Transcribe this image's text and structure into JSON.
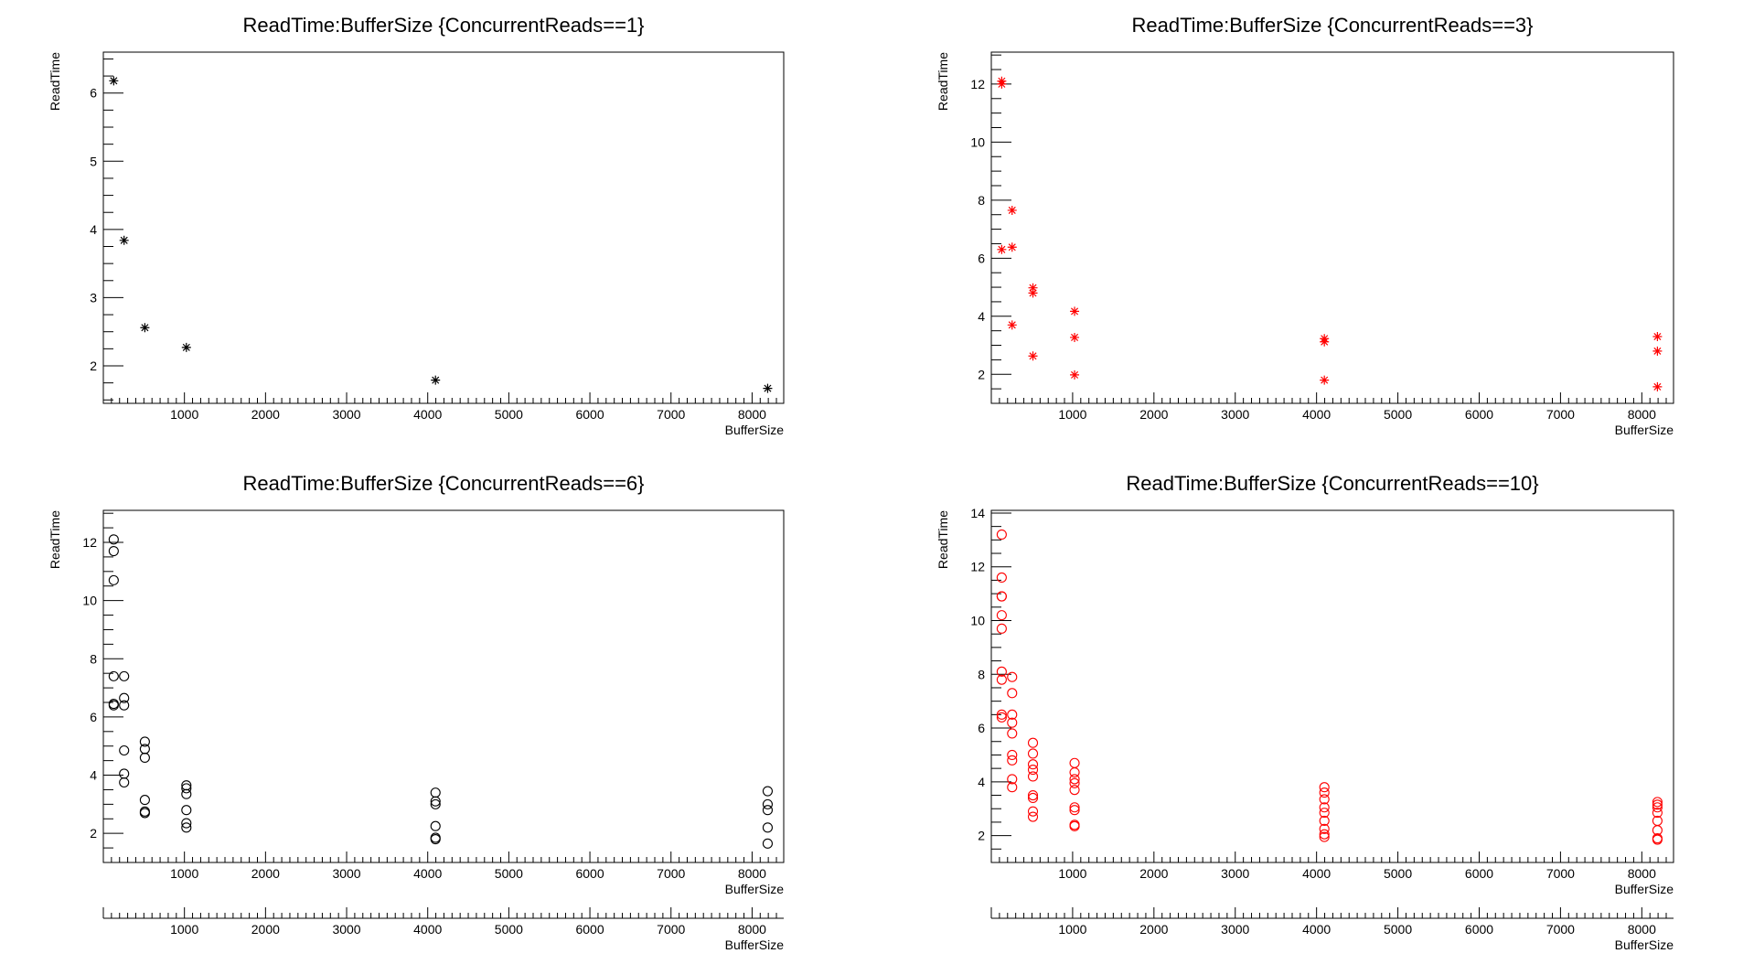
{
  "chart_data": [
    {
      "type": "scatter",
      "title": "ReadTime:BufferSize {ConcurrentReads==1}",
      "xlabel": "BufferSize",
      "ylabel": "ReadTime",
      "xlim": [
        0,
        8390
      ],
      "ylim": [
        1.45,
        6.6
      ],
      "xticks": [
        "1000",
        "2000",
        "3000",
        "4000",
        "5000",
        "6000",
        "7000",
        "8000"
      ],
      "yticks": [
        "2",
        "3",
        "4",
        "5",
        "6"
      ],
      "marker": "star",
      "color": "#000000",
      "points": [
        [
          128,
          6.18
        ],
        [
          256,
          3.84
        ],
        [
          512,
          2.56
        ],
        [
          1024,
          2.27
        ],
        [
          4096,
          1.79
        ],
        [
          8192,
          1.67
        ]
      ]
    },
    {
      "type": "scatter",
      "title": "ReadTime:BufferSize {ConcurrentReads==3}",
      "xlabel": "BufferSize",
      "ylabel": "ReadTime",
      "xlim": [
        0,
        8390
      ],
      "ylim": [
        1.0,
        13.1
      ],
      "xticks": [
        "1000",
        "2000",
        "3000",
        "4000",
        "5000",
        "6000",
        "7000",
        "8000"
      ],
      "yticks": [
        "2",
        "4",
        "6",
        "8",
        "10",
        "12"
      ],
      "marker": "star",
      "color": "#ff0000",
      "points": [
        [
          128,
          12.0
        ],
        [
          128,
          12.1
        ],
        [
          128,
          6.3
        ],
        [
          256,
          7.65
        ],
        [
          256,
          6.38
        ],
        [
          256,
          3.7
        ],
        [
          512,
          4.98
        ],
        [
          512,
          4.8
        ],
        [
          512,
          2.63
        ],
        [
          1024,
          4.17
        ],
        [
          1024,
          3.27
        ],
        [
          1024,
          1.98
        ],
        [
          4096,
          3.23
        ],
        [
          4096,
          3.12
        ],
        [
          4096,
          1.8
        ],
        [
          8192,
          3.3
        ],
        [
          8192,
          2.8
        ],
        [
          8192,
          1.57
        ]
      ]
    },
    {
      "type": "scatter",
      "title": "ReadTime:BufferSize {ConcurrentReads==6}",
      "xlabel": "BufferSize",
      "ylabel": "ReadTime",
      "xlim": [
        0,
        8390
      ],
      "ylim": [
        1.0,
        13.1
      ],
      "xticks": [
        "1000",
        "2000",
        "3000",
        "4000",
        "5000",
        "6000",
        "7000",
        "8000"
      ],
      "yticks": [
        "2",
        "4",
        "6",
        "8",
        "10",
        "12"
      ],
      "marker": "circle",
      "color": "#000000",
      "points": [
        [
          128,
          12.1
        ],
        [
          128,
          11.7
        ],
        [
          128,
          10.7
        ],
        [
          128,
          7.4
        ],
        [
          128,
          6.45
        ],
        [
          128,
          6.4
        ],
        [
          256,
          7.4
        ],
        [
          256,
          6.65
        ],
        [
          256,
          6.4
        ],
        [
          256,
          4.85
        ],
        [
          256,
          4.05
        ],
        [
          256,
          3.75
        ],
        [
          512,
          5.15
        ],
        [
          512,
          4.9
        ],
        [
          512,
          4.6
        ],
        [
          512,
          3.15
        ],
        [
          512,
          2.75
        ],
        [
          512,
          2.7
        ],
        [
          1024,
          3.65
        ],
        [
          1024,
          3.55
        ],
        [
          1024,
          3.35
        ],
        [
          1024,
          2.8
        ],
        [
          1024,
          2.35
        ],
        [
          1024,
          2.2
        ],
        [
          4096,
          3.4
        ],
        [
          4096,
          3.1
        ],
        [
          4096,
          3.0
        ],
        [
          4096,
          2.25
        ],
        [
          4096,
          1.85
        ],
        [
          4096,
          1.8
        ],
        [
          8192,
          3.45
        ],
        [
          8192,
          3.0
        ],
        [
          8192,
          2.8
        ],
        [
          8192,
          2.2
        ],
        [
          8192,
          1.65
        ]
      ]
    },
    {
      "type": "scatter",
      "title": "ReadTime:BufferSize {ConcurrentReads==10}",
      "xlabel": "BufferSize",
      "ylabel": "ReadTime",
      "xlim": [
        0,
        8390
      ],
      "ylim": [
        1.0,
        14.1
      ],
      "xticks": [
        "1000",
        "2000",
        "3000",
        "4000",
        "5000",
        "6000",
        "7000",
        "8000"
      ],
      "yticks": [
        "2",
        "4",
        "6",
        "8",
        "10",
        "12",
        "14"
      ],
      "marker": "circle",
      "color": "#ff0000",
      "points": [
        [
          128,
          13.2
        ],
        [
          128,
          11.6
        ],
        [
          128,
          10.9
        ],
        [
          128,
          10.9
        ],
        [
          128,
          10.2
        ],
        [
          128,
          9.7
        ],
        [
          128,
          8.1
        ],
        [
          128,
          7.8
        ],
        [
          128,
          6.5
        ],
        [
          128,
          6.4
        ],
        [
          256,
          7.9
        ],
        [
          256,
          7.3
        ],
        [
          256,
          6.5
        ],
        [
          256,
          6.2
        ],
        [
          256,
          5.8
        ],
        [
          256,
          5.0
        ],
        [
          256,
          4.8
        ],
        [
          256,
          4.1
        ],
        [
          256,
          3.8
        ],
        [
          512,
          5.45
        ],
        [
          512,
          5.05
        ],
        [
          512,
          4.65
        ],
        [
          512,
          4.45
        ],
        [
          512,
          4.2
        ],
        [
          512,
          3.5
        ],
        [
          512,
          3.4
        ],
        [
          512,
          2.9
        ],
        [
          512,
          2.7
        ],
        [
          1024,
          4.7
        ],
        [
          1024,
          4.35
        ],
        [
          1024,
          4.1
        ],
        [
          1024,
          3.95
        ],
        [
          1024,
          3.7
        ],
        [
          1024,
          3.05
        ],
        [
          1024,
          2.95
        ],
        [
          1024,
          2.4
        ],
        [
          1024,
          2.35
        ],
        [
          4096,
          3.8
        ],
        [
          4096,
          3.6
        ],
        [
          4096,
          3.35
        ],
        [
          4096,
          3.05
        ],
        [
          4096,
          2.85
        ],
        [
          4096,
          2.55
        ],
        [
          4096,
          2.25
        ],
        [
          4096,
          2.05
        ],
        [
          4096,
          1.95
        ],
        [
          8192,
          3.25
        ],
        [
          8192,
          3.15
        ],
        [
          8192,
          3.05
        ],
        [
          8192,
          2.85
        ],
        [
          8192,
          2.55
        ],
        [
          8192,
          2.2
        ],
        [
          8192,
          1.9
        ],
        [
          8192,
          1.85
        ]
      ]
    }
  ],
  "extra_axes": [
    {
      "xlabel": "BufferSize",
      "xlim": [
        0,
        8390
      ],
      "xticks": [
        "1000",
        "2000",
        "3000",
        "4000",
        "5000",
        "6000",
        "7000",
        "8000"
      ]
    },
    {
      "xlabel": "BufferSize",
      "xlim": [
        0,
        8390
      ],
      "xticks": [
        "1000",
        "2000",
        "3000",
        "4000",
        "5000",
        "6000",
        "7000",
        "8000"
      ]
    }
  ]
}
